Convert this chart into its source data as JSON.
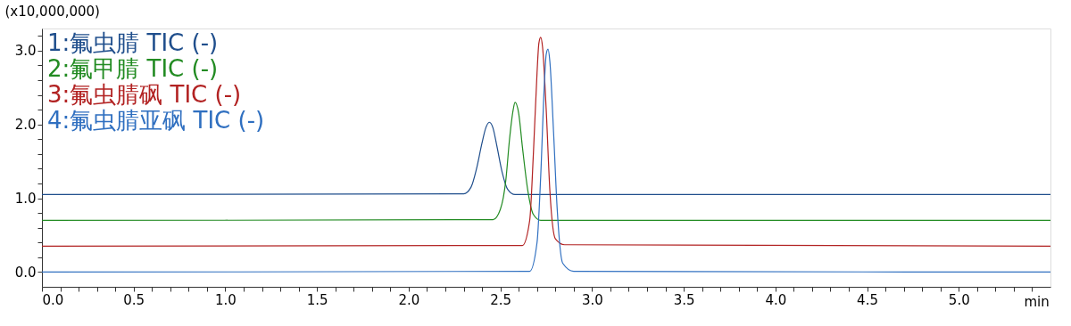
{
  "chart_data": {
    "type": "line",
    "xlabel": "min",
    "ylabel": "(x10,000,000)",
    "xlim": [
      0,
      5.5
    ],
    "ylim": [
      -0.2,
      3.3
    ],
    "xticks": [
      {
        "value": 0.0,
        "label": "0.0"
      },
      {
        "value": 0.1,
        "label": null
      },
      {
        "value": 0.2,
        "label": null
      },
      {
        "value": 0.3,
        "label": null
      },
      {
        "value": 0.4,
        "label": null
      },
      {
        "value": 0.5,
        "label": "0.5"
      },
      {
        "value": 0.6,
        "label": null
      },
      {
        "value": 0.7,
        "label": null
      },
      {
        "value": 0.8,
        "label": null
      },
      {
        "value": 0.9,
        "label": null
      },
      {
        "value": 1.0,
        "label": "1.0"
      },
      {
        "value": 1.1,
        "label": null
      },
      {
        "value": 1.2,
        "label": null
      },
      {
        "value": 1.3,
        "label": null
      },
      {
        "value": 1.4,
        "label": null
      },
      {
        "value": 1.5,
        "label": "1.5"
      },
      {
        "value": 1.6,
        "label": null
      },
      {
        "value": 1.7,
        "label": null
      },
      {
        "value": 1.8,
        "label": null
      },
      {
        "value": 1.9,
        "label": null
      },
      {
        "value": 2.0,
        "label": "2.0"
      },
      {
        "value": 2.1,
        "label": null
      },
      {
        "value": 2.2,
        "label": null
      },
      {
        "value": 2.3,
        "label": null
      },
      {
        "value": 2.4,
        "label": null
      },
      {
        "value": 2.5,
        "label": "2.5"
      },
      {
        "value": 2.6,
        "label": null
      },
      {
        "value": 2.7,
        "label": null
      },
      {
        "value": 2.8,
        "label": null
      },
      {
        "value": 2.9,
        "label": null
      },
      {
        "value": 3.0,
        "label": "3.0"
      },
      {
        "value": 3.1,
        "label": null
      },
      {
        "value": 3.2,
        "label": null
      },
      {
        "value": 3.3,
        "label": null
      },
      {
        "value": 3.4,
        "label": null
      },
      {
        "value": 3.5,
        "label": "3.5"
      },
      {
        "value": 3.6,
        "label": null
      },
      {
        "value": 3.7,
        "label": null
      },
      {
        "value": 3.8,
        "label": null
      },
      {
        "value": 3.9,
        "label": null
      },
      {
        "value": 4.0,
        "label": "4.0"
      },
      {
        "value": 4.1,
        "label": null
      },
      {
        "value": 4.2,
        "label": null
      },
      {
        "value": 4.3,
        "label": null
      },
      {
        "value": 4.4,
        "label": null
      },
      {
        "value": 4.5,
        "label": "4.5"
      },
      {
        "value": 4.6,
        "label": null
      },
      {
        "value": 4.7,
        "label": null
      },
      {
        "value": 4.8,
        "label": null
      },
      {
        "value": 4.9,
        "label": null
      },
      {
        "value": 5.0,
        "label": "5.0"
      },
      {
        "value": 5.1,
        "label": null
      },
      {
        "value": 5.2,
        "label": null
      },
      {
        "value": 5.3,
        "label": null
      },
      {
        "value": 5.4,
        "label": null
      }
    ],
    "yticks": [
      {
        "value": 0.0,
        "label": "0.0"
      },
      {
        "value": 0.2,
        "label": null
      },
      {
        "value": 0.4,
        "label": null
      },
      {
        "value": 0.6,
        "label": null
      },
      {
        "value": 0.8,
        "label": null
      },
      {
        "value": 1.0,
        "label": "1.0"
      },
      {
        "value": 1.2,
        "label": null
      },
      {
        "value": 1.4,
        "label": null
      },
      {
        "value": 1.6,
        "label": null
      },
      {
        "value": 1.8,
        "label": null
      },
      {
        "value": 2.0,
        "label": "2.0"
      },
      {
        "value": 2.2,
        "label": null
      },
      {
        "value": 2.4,
        "label": null
      },
      {
        "value": 2.6,
        "label": null
      },
      {
        "value": 2.8,
        "label": null
      },
      {
        "value": 3.0,
        "label": "3.0"
      },
      {
        "value": 3.2,
        "label": null
      }
    ],
    "grid": false,
    "legend": "top left",
    "marker": "none",
    "line_style": "solid",
    "series": [
      {
        "name": "1:氟虫腈 TIC (-)",
        "color": "#1f4e8c",
        "x": [
          0,
          2.3,
          2.34,
          2.37,
          2.4,
          2.42,
          2.44,
          2.46,
          2.48,
          2.51,
          2.54,
          2.58,
          5.5
        ],
        "values": [
          1.05,
          1.06,
          1.15,
          1.4,
          1.75,
          1.95,
          2.03,
          1.95,
          1.72,
          1.35,
          1.12,
          1.05,
          1.05
        ]
      },
      {
        "name": "2:氟甲腈 TIC (-)",
        "color": "#228b22",
        "x": [
          0,
          2.46,
          2.5,
          2.53,
          2.55,
          2.57,
          2.58,
          2.6,
          2.62,
          2.65,
          2.68,
          2.72,
          5.5
        ],
        "values": [
          0.7,
          0.71,
          0.85,
          1.25,
          1.8,
          2.2,
          2.3,
          2.15,
          1.7,
          1.1,
          0.78,
          0.7,
          0.7
        ]
      },
      {
        "name": "3:氟虫腈砜 TIC (-)",
        "color": "#b22222",
        "x": [
          0,
          2.62,
          2.66,
          2.68,
          2.7,
          2.71,
          2.72,
          2.73,
          2.75,
          2.77,
          2.8,
          2.85,
          5.5
        ],
        "values": [
          0.35,
          0.36,
          0.7,
          1.6,
          2.7,
          3.1,
          3.18,
          3.05,
          2.2,
          1.1,
          0.45,
          0.37,
          0.35
        ]
      },
      {
        "name": "4:氟虫腈亚砜 TIC (-)",
        "color": "#2f6fc0",
        "x": [
          0,
          2.66,
          2.7,
          2.72,
          2.74,
          2.75,
          2.76,
          2.77,
          2.79,
          2.81,
          2.84,
          2.9,
          5.5
        ],
        "values": [
          0.0,
          0.01,
          0.4,
          1.3,
          2.55,
          2.95,
          3.02,
          2.85,
          1.9,
          0.85,
          0.12,
          0.01,
          0.0
        ]
      }
    ]
  }
}
